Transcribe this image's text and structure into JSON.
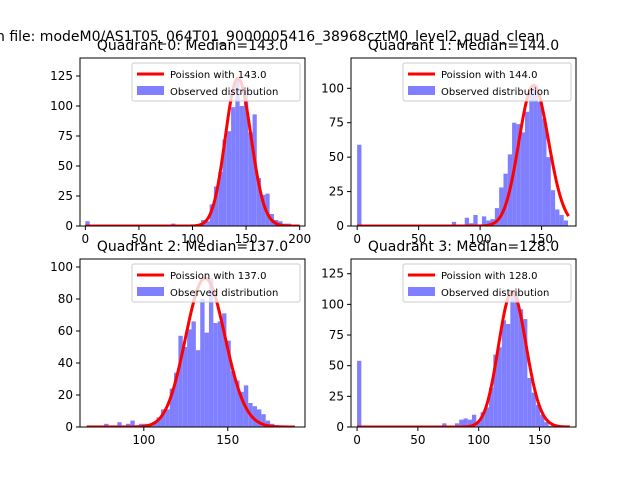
{
  "figure": {
    "suptitle": "n file: modeM0/AS1T05_064T01_9000005416_38968cztM0_level2_quad_clean"
  },
  "colors": {
    "bars": "#7f7fff",
    "poisson": "#ff0000",
    "axes": "#000000"
  },
  "chart_data": [
    {
      "type": "bar",
      "title": "Quadrant 0: Median=143.0",
      "xlim": [
        -5,
        205
      ],
      "ylim": [
        0,
        140
      ],
      "xticks": [
        0,
        50,
        100,
        150,
        200
      ],
      "yticks": [
        0,
        25,
        50,
        75,
        100,
        125
      ],
      "legend_position": "upper-right",
      "legend": [
        "Poission with 143.0",
        "Observed distribution"
      ],
      "bin_width": 4,
      "bins": [
        [
          0,
          4
        ],
        [
          4,
          1
        ],
        [
          8,
          1
        ],
        [
          12,
          1
        ],
        [
          16,
          1
        ],
        [
          20,
          1
        ],
        [
          24,
          1
        ],
        [
          28,
          1
        ],
        [
          32,
          1
        ],
        [
          36,
          1
        ],
        [
          40,
          1
        ],
        [
          44,
          1
        ],
        [
          48,
          1
        ],
        [
          52,
          1
        ],
        [
          56,
          1
        ],
        [
          60,
          1
        ],
        [
          64,
          1
        ],
        [
          68,
          1
        ],
        [
          72,
          1
        ],
        [
          76,
          1
        ],
        [
          80,
          2
        ],
        [
          84,
          1
        ],
        [
          88,
          1
        ],
        [
          92,
          1
        ],
        [
          96,
          1
        ],
        [
          100,
          1
        ],
        [
          104,
          1
        ],
        [
          108,
          5
        ],
        [
          112,
          4
        ],
        [
          116,
          18
        ],
        [
          120,
          33
        ],
        [
          124,
          45
        ],
        [
          128,
          72
        ],
        [
          132,
          79
        ],
        [
          136,
          99
        ],
        [
          140,
          123
        ],
        [
          144,
          100
        ],
        [
          148,
          113
        ],
        [
          152,
          78
        ],
        [
          156,
          93
        ],
        [
          160,
          40
        ],
        [
          164,
          26
        ],
        [
          168,
          27
        ],
        [
          172,
          10
        ],
        [
          176,
          5
        ],
        [
          180,
          4
        ],
        [
          184,
          2
        ],
        [
          188,
          2
        ],
        [
          192,
          1
        ]
      ],
      "poisson_mean": 143.0,
      "poisson_range": [
        0,
        200
      ]
    },
    {
      "type": "bar",
      "title": "Quadrant 1: Median=144.0",
      "xlim": [
        -5,
        178
      ],
      "ylim": [
        0,
        122
      ],
      "xticks": [
        0,
        50,
        100,
        150
      ],
      "yticks": [
        0,
        25,
        50,
        75,
        100
      ],
      "legend_position": "upper-right",
      "legend": [
        "Poission with 144.0",
        "Observed distribution"
      ],
      "bin_width": 3.5,
      "bins": [
        [
          0,
          59
        ],
        [
          3.5,
          1
        ],
        [
          7,
          1
        ],
        [
          10.5,
          1
        ],
        [
          14,
          1
        ],
        [
          17.5,
          1
        ],
        [
          21,
          1
        ],
        [
          24.5,
          1
        ],
        [
          28,
          1
        ],
        [
          31.5,
          1
        ],
        [
          35,
          1
        ],
        [
          38.5,
          1
        ],
        [
          42,
          1
        ],
        [
          45.5,
          1
        ],
        [
          49,
          1
        ],
        [
          52.5,
          1
        ],
        [
          56,
          1
        ],
        [
          59.5,
          1
        ],
        [
          63,
          1
        ],
        [
          66.5,
          1
        ],
        [
          70,
          1
        ],
        [
          73.5,
          1
        ],
        [
          77,
          3
        ],
        [
          80.5,
          1
        ],
        [
          84,
          1
        ],
        [
          87.5,
          6
        ],
        [
          91,
          2
        ],
        [
          94.5,
          8
        ],
        [
          98,
          1
        ],
        [
          101.5,
          7
        ],
        [
          105,
          4
        ],
        [
          108.5,
          5
        ],
        [
          112,
          13
        ],
        [
          115.5,
          28
        ],
        [
          119,
          38
        ],
        [
          122.5,
          52
        ],
        [
          126,
          75
        ],
        [
          129.5,
          74
        ],
        [
          133,
          68
        ],
        [
          136.5,
          83
        ],
        [
          140,
          101
        ],
        [
          143.5,
          102
        ],
        [
          147,
          90
        ],
        [
          150.5,
          78
        ],
        [
          154,
          50
        ],
        [
          157.5,
          26
        ],
        [
          161,
          12
        ],
        [
          164.5,
          8
        ],
        [
          168,
          4
        ]
      ],
      "poisson_mean": 144.0,
      "poisson_range": [
        0,
        172
      ]
    },
    {
      "type": "bar",
      "title": "Quadrant 2: Median=137.0",
      "xlim": [
        62,
        196
      ],
      "ylim": [
        0,
        105
      ],
      "xticks": [
        100,
        150
      ],
      "yticks": [
        0,
        20,
        40,
        60,
        80,
        100
      ],
      "legend_position": "upper-right",
      "legend": [
        "Poission with 137.0",
        "Observed distribution"
      ],
      "bin_width": 2.6,
      "bins": [
        [
          66,
          1
        ],
        [
          68.6,
          1
        ],
        [
          71.2,
          1
        ],
        [
          73.8,
          1
        ],
        [
          76.4,
          2
        ],
        [
          79,
          1
        ],
        [
          81.6,
          1
        ],
        [
          84.2,
          3
        ],
        [
          86.8,
          1
        ],
        [
          89.4,
          2
        ],
        [
          92,
          4
        ],
        [
          94.6,
          1
        ],
        [
          97.2,
          2
        ],
        [
          99.8,
          2
        ],
        [
          102.4,
          2
        ],
        [
          105,
          3
        ],
        [
          107.6,
          6
        ],
        [
          110.2,
          11
        ],
        [
          112.8,
          11
        ],
        [
          115.4,
          24
        ],
        [
          118,
          34
        ],
        [
          120.6,
          57
        ],
        [
          123.2,
          50
        ],
        [
          125.8,
          61
        ],
        [
          128.4,
          66
        ],
        [
          131,
          48
        ],
        [
          133.6,
          80
        ],
        [
          136.2,
          59
        ],
        [
          138.8,
          93
        ],
        [
          141.4,
          65
        ],
        [
          144,
          66
        ],
        [
          146.6,
          71
        ],
        [
          149.2,
          54
        ],
        [
          151.8,
          35
        ],
        [
          154.4,
          29
        ],
        [
          157,
          22
        ],
        [
          159.6,
          26
        ],
        [
          162.2,
          15
        ],
        [
          164.8,
          13
        ],
        [
          167.4,
          11
        ],
        [
          170,
          8
        ],
        [
          172.6,
          4
        ],
        [
          175.2,
          2
        ],
        [
          177.8,
          1
        ],
        [
          180.4,
          1
        ]
      ],
      "poisson_mean": 137.0,
      "poisson_range": [
        66,
        190
      ]
    },
    {
      "type": "bar",
      "title": "Quadrant 3: Median=128.0",
      "xlim": [
        -5,
        180
      ],
      "ylim": [
        0,
        137
      ],
      "xticks": [
        0,
        50,
        100,
        150
      ],
      "yticks": [
        0,
        25,
        50,
        75,
        100,
        125
      ],
      "legend_position": "upper-right",
      "legend": [
        "Poission with 128.0",
        "Observed distribution"
      ],
      "bin_width": 3.5,
      "bins": [
        [
          0,
          54
        ],
        [
          3.5,
          1
        ],
        [
          7,
          1
        ],
        [
          10.5,
          1
        ],
        [
          14,
          1
        ],
        [
          17.5,
          1
        ],
        [
          21,
          1
        ],
        [
          24.5,
          1
        ],
        [
          28,
          1
        ],
        [
          31.5,
          1
        ],
        [
          35,
          1
        ],
        [
          38.5,
          1
        ],
        [
          42,
          1
        ],
        [
          45.5,
          1
        ],
        [
          49,
          1
        ],
        [
          52.5,
          1
        ],
        [
          56,
          1
        ],
        [
          59.5,
          1
        ],
        [
          63,
          1
        ],
        [
          66.5,
          1
        ],
        [
          70,
          3
        ],
        [
          73.5,
          1
        ],
        [
          77,
          1
        ],
        [
          80.5,
          3
        ],
        [
          84,
          6
        ],
        [
          87.5,
          7
        ],
        [
          91,
          6
        ],
        [
          94.5,
          10
        ],
        [
          98,
          4
        ],
        [
          101.5,
          12
        ],
        [
          105,
          16
        ],
        [
          108.5,
          32
        ],
        [
          112,
          59
        ],
        [
          115.5,
          65
        ],
        [
          119,
          87
        ],
        [
          122.5,
          84
        ],
        [
          126,
          107
        ],
        [
          129.5,
          110
        ],
        [
          133,
          96
        ],
        [
          136.5,
          88
        ],
        [
          140,
          40
        ],
        [
          143.5,
          28
        ],
        [
          147,
          18
        ],
        [
          150.5,
          10
        ],
        [
          154,
          4
        ],
        [
          157.5,
          1
        ]
      ],
      "poisson_mean": 128.0,
      "poisson_range": [
        0,
        175
      ]
    }
  ]
}
